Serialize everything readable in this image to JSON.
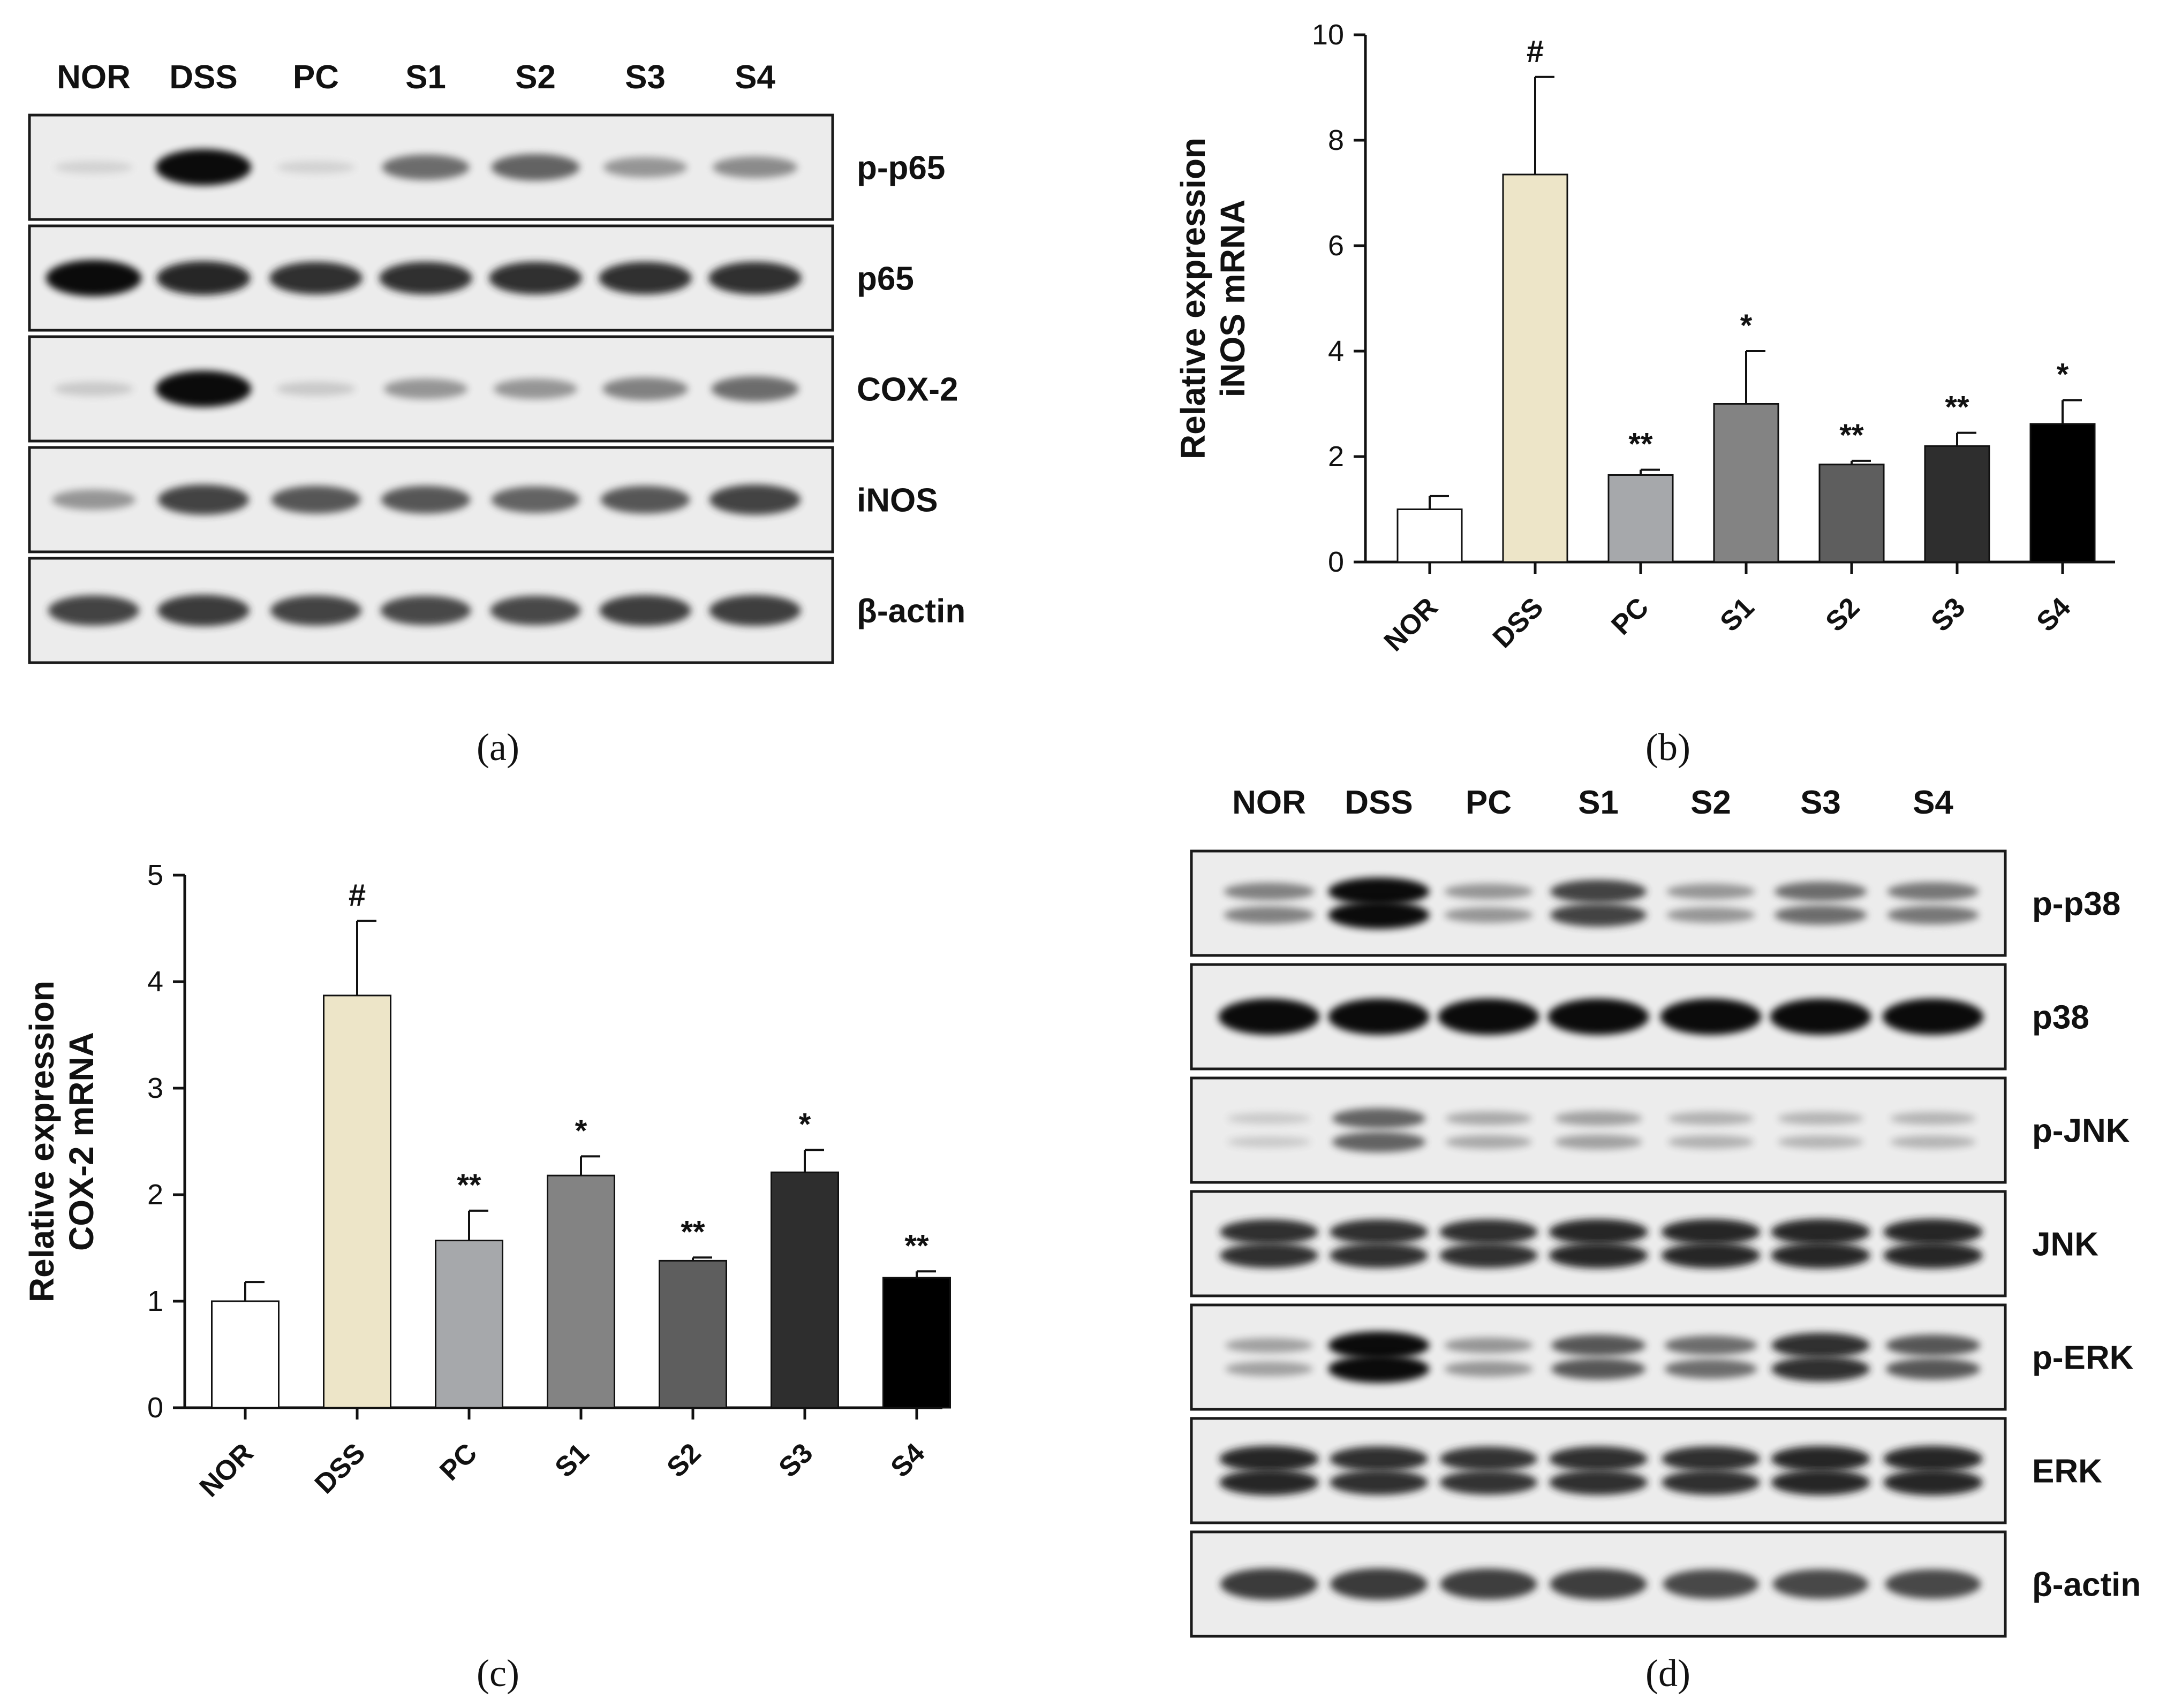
{
  "panel_a": {
    "caption": "(a)",
    "lanes": [
      "NOR",
      "DSS",
      "PC",
      "S1",
      "S2",
      "S3",
      "S4"
    ],
    "blots": [
      {
        "protein": "p-p65",
        "intensity": [
          0.05,
          1.0,
          0.05,
          0.55,
          0.6,
          0.35,
          0.4
        ],
        "double": false
      },
      {
        "protein": "p65",
        "intensity": [
          1.0,
          0.9,
          0.85,
          0.85,
          0.85,
          0.85,
          0.85
        ],
        "double": false
      },
      {
        "protein": "COX-2",
        "intensity": [
          0.1,
          1.0,
          0.1,
          0.35,
          0.35,
          0.45,
          0.55
        ],
        "double": false
      },
      {
        "protein": "iNOS",
        "intensity": [
          0.35,
          0.75,
          0.65,
          0.65,
          0.6,
          0.65,
          0.75
        ],
        "double": false
      },
      {
        "protein": "β-actin",
        "intensity": [
          0.75,
          0.8,
          0.75,
          0.72,
          0.72,
          0.78,
          0.78
        ],
        "double": false
      }
    ]
  },
  "panel_d": {
    "caption": "(d)",
    "lanes": [
      "NOR",
      "DSS",
      "PC",
      "S1",
      "S2",
      "S3",
      "S4"
    ],
    "blots": [
      {
        "protein": "p-p38",
        "intensity": [
          0.45,
          1.0,
          0.35,
          0.75,
          0.35,
          0.55,
          0.5
        ],
        "double": true
      },
      {
        "protein": "p38",
        "intensity": [
          1.0,
          1.0,
          1.0,
          1.0,
          1.0,
          1.0,
          1.0
        ],
        "double": false
      },
      {
        "protein": "p-JNK",
        "intensity": [
          0.1,
          0.6,
          0.25,
          0.3,
          0.22,
          0.2,
          0.2
        ],
        "double": true
      },
      {
        "protein": "JNK",
        "intensity": [
          0.85,
          0.85,
          0.85,
          0.88,
          0.88,
          0.9,
          0.9
        ],
        "double": true
      },
      {
        "protein": "p-ERK",
        "intensity": [
          0.3,
          1.0,
          0.35,
          0.65,
          0.55,
          0.85,
          0.65
        ],
        "double": true
      },
      {
        "protein": "ERK",
        "intensity": [
          0.9,
          0.85,
          0.82,
          0.85,
          0.85,
          0.88,
          0.9
        ],
        "double": true
      },
      {
        "protein": "β-actin",
        "intensity": [
          0.8,
          0.8,
          0.78,
          0.78,
          0.72,
          0.72,
          0.72
        ],
        "double": false
      }
    ]
  },
  "chart_data": [
    {
      "panel": "(b)",
      "type": "bar",
      "categories": [
        "NOR",
        "DSS",
        "PC",
        "S1",
        "S2",
        "S3",
        "S4"
      ],
      "values": [
        1.0,
        7.35,
        1.65,
        3.0,
        1.85,
        2.2,
        2.62
      ],
      "errors": [
        0.25,
        1.85,
        0.1,
        1.0,
        0.07,
        0.25,
        0.45
      ],
      "significance": [
        "",
        "#",
        "**",
        "*",
        "**",
        "**",
        "*"
      ],
      "bar_colors": [
        "#ffffff",
        "#ede5c8",
        "#a6a8ab",
        "#838383",
        "#5e5e5e",
        "#2e2e2e",
        "#000000"
      ],
      "ylabel": [
        "Relative expression",
        "iNOS mRNA"
      ],
      "xlabel": "",
      "ylim": [
        0,
        10
      ],
      "yticks": [
        0,
        2,
        4,
        6,
        8,
        10
      ],
      "grid": false
    },
    {
      "panel": "(c)",
      "type": "bar",
      "categories": [
        "NOR",
        "DSS",
        "PC",
        "S1",
        "S2",
        "S3",
        "S4"
      ],
      "values": [
        1.0,
        3.87,
        1.57,
        2.18,
        1.38,
        2.21,
        1.22
      ],
      "errors": [
        0.18,
        0.7,
        0.28,
        0.18,
        0.03,
        0.21,
        0.06
      ],
      "significance": [
        "",
        "#",
        "**",
        "*",
        "**",
        "*",
        "**"
      ],
      "bar_colors": [
        "#ffffff",
        "#ede5c8",
        "#a6a8ab",
        "#838383",
        "#5e5e5e",
        "#2e2e2e",
        "#000000"
      ],
      "ylabel": [
        "Relative expression",
        "COX-2 mRNA"
      ],
      "xlabel": "",
      "ylim": [
        0,
        5
      ],
      "yticks": [
        0,
        1,
        2,
        3,
        4,
        5
      ],
      "grid": false
    }
  ]
}
